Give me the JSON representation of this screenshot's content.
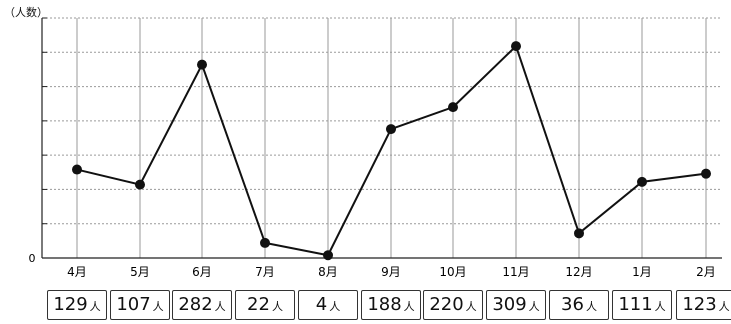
{
  "chart_data": {
    "type": "line",
    "y_unit_label": "（人数）",
    "y_zero_label": "0",
    "categories": [
      "4月",
      "5月",
      "6月",
      "7月",
      "8月",
      "9月",
      "10月",
      "11月",
      "12月",
      "1月",
      "2月"
    ],
    "series": [
      {
        "values": [
          129,
          107,
          282,
          22,
          4,
          188,
          220,
          309,
          36,
          111,
          123
        ]
      }
    ],
    "value_labels": [
      "129",
      "107",
      "282",
      "22",
      "4",
      "188",
      "220",
      "309",
      "36",
      "111",
      "123"
    ],
    "value_unit": "人",
    "ylim": [
      0,
      350
    ],
    "grid": true,
    "colors": {
      "line": "#111111",
      "grid": "#9a9a9a",
      "marker": "#111111"
    }
  }
}
